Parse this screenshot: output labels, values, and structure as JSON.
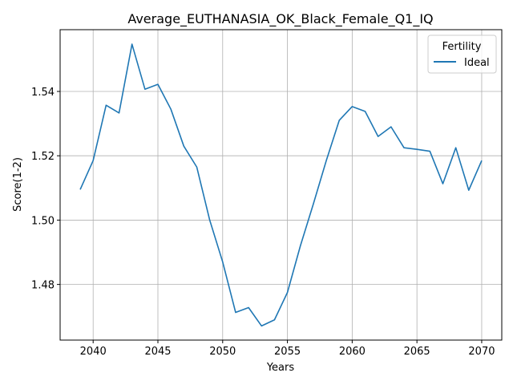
{
  "chart_data": {
    "type": "line",
    "title": "Average_EUTHANASIA_OK_Black_Female_Q1_IQ",
    "xlabel": "Years",
    "ylabel": "Score(1-2)",
    "xlim": [
      2037.45,
      2071.55
    ],
    "ylim": [
      1.4627,
      1.5592
    ],
    "xticks": [
      2040,
      2045,
      2050,
      2055,
      2060,
      2065,
      2070
    ],
    "yticks": [
      1.48,
      1.5,
      1.52,
      1.54
    ],
    "grid": true,
    "legend": {
      "title": "Fertility",
      "placement": "top-right"
    },
    "colors": {
      "series": "#1f77b4",
      "grid": "#b0b0b0",
      "axis": "#000000"
    },
    "x": [
      2039,
      2040,
      2041,
      2042,
      2043,
      2044,
      2045,
      2046,
      2047,
      2048,
      2049,
      2050,
      2051,
      2052,
      2053,
      2054,
      2055,
      2056,
      2057,
      2058,
      2059,
      2060,
      2061,
      2062,
      2063,
      2064,
      2065,
      2066,
      2067,
      2068,
      2069,
      2070
    ],
    "series": [
      {
        "name": "Ideal",
        "values": [
          1.5095,
          1.5185,
          1.5357,
          1.5333,
          1.5547,
          1.5407,
          1.5422,
          1.5345,
          1.523,
          1.5165,
          1.5,
          1.487,
          1.4713,
          1.4728,
          1.4671,
          1.469,
          1.4775,
          1.492,
          1.505,
          1.5185,
          1.531,
          1.5353,
          1.5338,
          1.526,
          1.529,
          1.5225,
          1.522,
          1.5214,
          1.5113,
          1.5225,
          1.5093,
          1.5185
        ]
      }
    ]
  }
}
